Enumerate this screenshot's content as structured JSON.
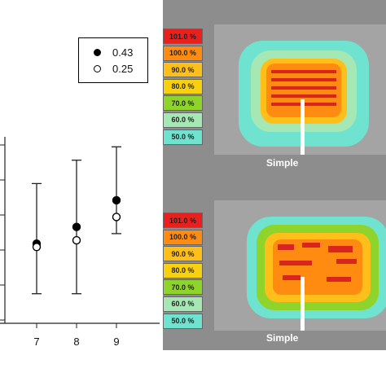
{
  "chart_data": {
    "type": "scatter",
    "title": "",
    "xlabel": "",
    "ylabel": "",
    "x_tick_labels": [
      "7",
      "8",
      "9"
    ],
    "series": [
      {
        "name": "0.43",
        "marker": "filled-circle",
        "color": "#000000",
        "x": [
          7,
          8,
          9
        ],
        "y": [
          4.8,
          5.3,
          6.1
        ],
        "err_low": [
          3.3,
          3.3,
          5.1
        ],
        "err_high": [
          6.6,
          7.3,
          7.7
        ]
      },
      {
        "name": "0.25",
        "marker": "open-circle",
        "color": "#000000",
        "x": [
          7,
          8,
          9
        ],
        "y": [
          4.7,
          4.9,
          5.6
        ],
        "err_low": [
          3.3,
          3.3,
          5.1
        ],
        "err_high": [
          6.6,
          7.3,
          7.7
        ]
      }
    ],
    "legend_position": "top-right",
    "grid": false
  },
  "legend": {
    "items": [
      {
        "label": "0.43",
        "style": "filled"
      },
      {
        "label": "0.25",
        "style": "open"
      }
    ]
  },
  "heatmap_panels": {
    "scale_labels": [
      "101.0 %",
      "100.0 %",
      "90.0 %",
      "80.0 %",
      "70.0 %",
      "60.0 %",
      "50.0 %"
    ],
    "scale_colors": [
      "#e8201e",
      "#ff8c10",
      "#ffbf1a",
      "#f7d010",
      "#8fd42a",
      "#a6e8b4",
      "#6fe3cf"
    ],
    "top_caption": "Simple",
    "bottom_caption": "Simple"
  }
}
